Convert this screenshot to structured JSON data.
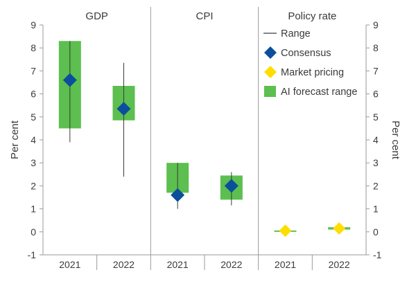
{
  "chart_data": {
    "type": "range",
    "panels": [
      {
        "title": "GDP",
        "categories": [
          "2021",
          "2022"
        ],
        "ai_forecast_range": [
          [
            4.5,
            8.3
          ],
          [
            4.85,
            6.35
          ]
        ],
        "range": [
          [
            3.9,
            8.3
          ],
          [
            2.4,
            7.35
          ]
        ],
        "consensus": [
          6.6,
          5.35
        ],
        "market_pricing": [
          null,
          null
        ]
      },
      {
        "title": "CPI",
        "categories": [
          "2021",
          "2022"
        ],
        "ai_forecast_range": [
          [
            1.7,
            3.0
          ],
          [
            1.4,
            2.45
          ]
        ],
        "range": [
          [
            1.0,
            3.0
          ],
          [
            1.15,
            2.6
          ]
        ],
        "consensus": [
          1.6,
          2.0
        ],
        "market_pricing": [
          null,
          null
        ]
      },
      {
        "title": "Policy rate",
        "categories": [
          "2021",
          "2022"
        ],
        "ai_forecast_range": [
          [
            0.0,
            0.06
          ],
          [
            0.1,
            0.2
          ]
        ],
        "range": [
          [
            null,
            null
          ],
          [
            null,
            null
          ]
        ],
        "consensus": [
          null,
          null
        ],
        "market_pricing": [
          0.05,
          0.15
        ]
      }
    ],
    "ylabel_left": "Per cent",
    "ylabel_right": "Per cent",
    "ylim": [
      -1,
      9
    ],
    "yticks": [
      "-1",
      "0",
      "1",
      "2",
      "3",
      "4",
      "5",
      "6",
      "7",
      "8",
      "9"
    ],
    "legend": {
      "position": "top-right",
      "items": [
        {
          "key": "range",
          "label": "Range"
        },
        {
          "key": "consensus",
          "label": "Consensus"
        },
        {
          "key": "market_pricing",
          "label": "Market pricing"
        },
        {
          "key": "ai_forecast_range",
          "label": "AI forecast range"
        }
      ]
    },
    "colors": {
      "ai_forecast_range": "#5cbf4f",
      "consensus": "#0b4f9c",
      "market_pricing": "#ffdd00",
      "range": "#3a3a3a",
      "axis": "#9a9a9a"
    }
  }
}
